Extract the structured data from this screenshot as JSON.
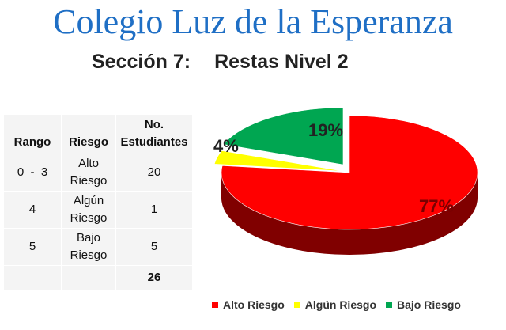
{
  "header": {
    "title": "Colegio Luz de la Esperanza",
    "section": "Sección 7:",
    "topic": "Restas Nivel 2"
  },
  "table": {
    "headers": [
      "Rango",
      "Riesgo",
      "No. Estudiantes"
    ],
    "rows": [
      {
        "rango": "0  -  3",
        "riesgo": "Alto Riesgo",
        "estudiantes": "20"
      },
      {
        "rango": "4",
        "riesgo": "Algún Riesgo",
        "estudiantes": "1"
      },
      {
        "rango": "5",
        "riesgo": "Bajo Riesgo",
        "estudiantes": "5"
      }
    ],
    "total": "26"
  },
  "chart_data": {
    "type": "pie",
    "style": "3d, exploded",
    "categories": [
      "Alto Riesgo",
      "Algún Riesgo",
      "Bajo Riesgo"
    ],
    "values": [
      20,
      1,
      5
    ],
    "data_labels": [
      "77%",
      "4%",
      "19%"
    ],
    "colors": [
      "#ff0000",
      "#ffff00",
      "#00a651"
    ],
    "legend_position": "bottom"
  }
}
